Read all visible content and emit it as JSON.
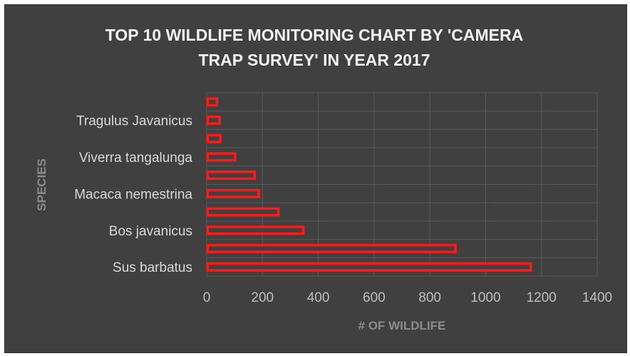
{
  "chart_data": {
    "type": "bar",
    "orientation": "horizontal",
    "title_lines": [
      "TOP 10 WILDLIFE MONITORING CHART BY 'CAMERA",
      "TRAP SURVEY' IN YEAR 2017"
    ],
    "xlabel": "# OF WILDLIFE",
    "ylabel": "SPECIES",
    "xlim": [
      0,
      1400
    ],
    "xticks": [
      "0",
      "200",
      "400",
      "600",
      "800",
      "1000",
      "1200",
      "1400"
    ],
    "grid": true,
    "legend": "none",
    "bar_color": "#ff1a1a",
    "background": "#404040",
    "categories": [
      "Sus barbatus",
      "",
      "Bos javanicus",
      "",
      "Macaca nemestrina",
      "",
      "Viverra tangalunga",
      "",
      "Tragulus Javanicus",
      ""
    ],
    "values": [
      1165,
      895,
      350,
      260,
      190,
      175,
      105,
      52,
      50,
      40
    ]
  }
}
